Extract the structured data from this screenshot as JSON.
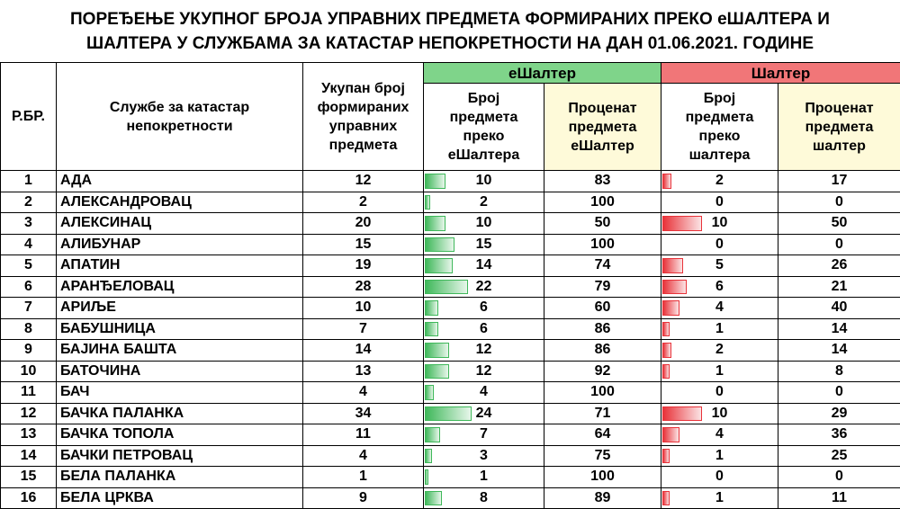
{
  "title": {
    "line1": "ПОРЕЂЕЊЕ УКУПНОГ БРОЈА УПРАВНИХ ПРЕДМЕТА ФОРМИРАНИХ ПРЕКО еШАЛТЕРА И",
    "line2": "ШАЛТЕРА У СЛУЖБАМА ЗА КАТАСТАР НЕПОКРЕТНОСТИ НА ДАН 01.06.2021. ГОДИНЕ"
  },
  "headers": {
    "rb": "Р.БР.",
    "office": "Службе за катастар непокретности",
    "total": "Укупан број формираних управних предмета",
    "group_e": "еШалтер",
    "group_s": "Шалтер",
    "count_e": "Број предмета преко еШалтера",
    "pct_e": "Проценат предмета еШалтер",
    "count_s": "Број предмета преко шалтера",
    "pct_s": "Проценат предмета шалтер"
  },
  "colors": {
    "e_header": "#7fd48a",
    "s_header": "#f17678",
    "pct_header": "#fefad9",
    "e_bar": "#3fb85a",
    "s_bar": "#e8333a"
  },
  "rows": [
    {
      "rb": "1",
      "name": "АДА",
      "total": "12",
      "e": "10",
      "e_pct": "83",
      "s": "2",
      "s_pct": "17"
    },
    {
      "rb": "2",
      "name": "АЛЕКСАНДРОВАЦ",
      "total": "2",
      "e": "2",
      "e_pct": "100",
      "s": "0",
      "s_pct": "0"
    },
    {
      "rb": "3",
      "name": "АЛЕКСИНАЦ",
      "total": "20",
      "e": "10",
      "e_pct": "50",
      "s": "10",
      "s_pct": "50"
    },
    {
      "rb": "4",
      "name": "АЛИБУНАР",
      "total": "15",
      "e": "15",
      "e_pct": "100",
      "s": "0",
      "s_pct": "0"
    },
    {
      "rb": "5",
      "name": "АПАТИН",
      "total": "19",
      "e": "14",
      "e_pct": "74",
      "s": "5",
      "s_pct": "26"
    },
    {
      "rb": "6",
      "name": "АРАНЂЕЛОВАЦ",
      "total": "28",
      "e": "22",
      "e_pct": "79",
      "s": "6",
      "s_pct": "21"
    },
    {
      "rb": "7",
      "name": "АРИЉЕ",
      "total": "10",
      "e": "6",
      "e_pct": "60",
      "s": "4",
      "s_pct": "40"
    },
    {
      "rb": "8",
      "name": "БАБУШНИЦА",
      "total": "7",
      "e": "6",
      "e_pct": "86",
      "s": "1",
      "s_pct": "14"
    },
    {
      "rb": "9",
      "name": "БАЈИНА БАШТА",
      "total": "14",
      "e": "12",
      "e_pct": "86",
      "s": "2",
      "s_pct": "14"
    },
    {
      "rb": "10",
      "name": "БАТОЧИНА",
      "total": "13",
      "e": "12",
      "e_pct": "92",
      "s": "1",
      "s_pct": "8"
    },
    {
      "rb": "11",
      "name": "БАЧ",
      "total": "4",
      "e": "4",
      "e_pct": "100",
      "s": "0",
      "s_pct": "0"
    },
    {
      "rb": "12",
      "name": "БАЧКА ПАЛАНКА",
      "total": "34",
      "e": "24",
      "e_pct": "71",
      "s": "10",
      "s_pct": "29"
    },
    {
      "rb": "13",
      "name": "БАЧКА ТОПОЛА",
      "total": "11",
      "e": "7",
      "e_pct": "64",
      "s": "4",
      "s_pct": "36"
    },
    {
      "rb": "14",
      "name": "БАЧКИ ПЕТРОВАЦ",
      "total": "4",
      "e": "3",
      "e_pct": "75",
      "s": "1",
      "s_pct": "25"
    },
    {
      "rb": "15",
      "name": "БЕЛА ПАЛАНКА",
      "total": "1",
      "e": "1",
      "e_pct": "100",
      "s": "0",
      "s_pct": "0"
    },
    {
      "rb": "16",
      "name": "БЕЛА ЦРКВА",
      "total": "9",
      "e": "8",
      "e_pct": "89",
      "s": "1",
      "s_pct": "11"
    }
  ]
}
